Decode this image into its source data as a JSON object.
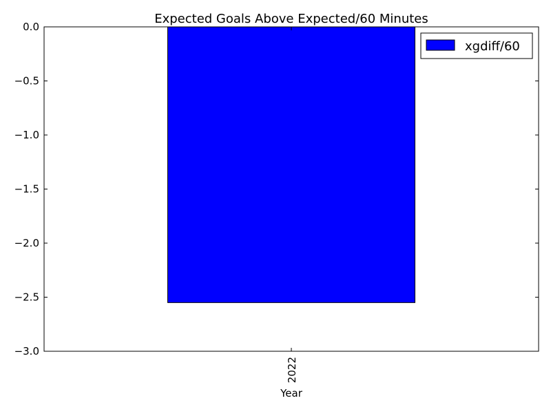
{
  "chart_data": {
    "type": "bar",
    "title": "Expected Goals Above Expected/60 Minutes",
    "xlabel": "Year",
    "ylabel": "",
    "categories": [
      "2022"
    ],
    "series": [
      {
        "name": "xgdiff/60",
        "values": [
          -2.55
        ],
        "color": "#0000ff"
      }
    ],
    "ylim": [
      -3.0,
      0.0
    ],
    "yticks": [
      0.0,
      -0.5,
      -1.0,
      -1.5,
      -2.0,
      -2.5,
      -3.0
    ],
    "ytick_labels": [
      "0.0",
      "−0.5",
      "−1.0",
      "−1.5",
      "−2.0",
      "−2.5",
      "−3.0"
    ],
    "grid": false,
    "legend_position": "top-right",
    "x_tick_rotation": "vertical"
  }
}
